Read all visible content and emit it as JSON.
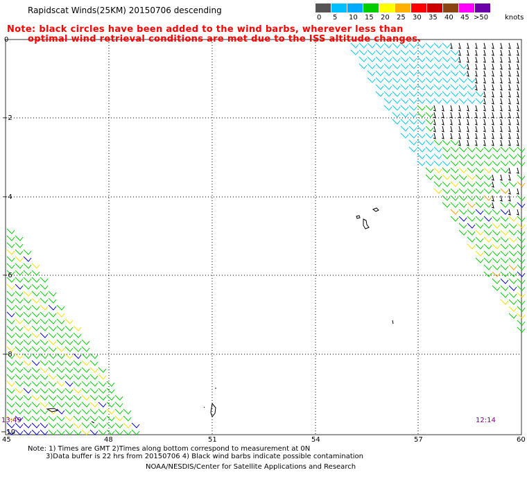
{
  "title": "Rapidscat Winds(25KM) 20150706 descending",
  "note": {
    "line1": "Note: black circles have been added to the wind barbs, wherever less than",
    "line2": "optimal wind retrieval conditions are met due to the ISS altitude changes."
  },
  "legend": {
    "unit": "knots",
    "bins": [
      {
        "label": "0",
        "color": "#555555"
      },
      {
        "label": "5",
        "color": "#00bfff"
      },
      {
        "label": "10",
        "color": "#00aaff"
      },
      {
        "label": "15",
        "color": "#00cc00"
      },
      {
        "label": "20",
        "color": "#ffff00"
      },
      {
        "label": "25",
        "color": "#ffb000"
      },
      {
        "label": "30",
        "color": "#ff0000"
      },
      {
        "label": "35",
        "color": "#cc0000"
      },
      {
        "label": "40",
        "color": "#8b4513"
      },
      {
        "label": "45",
        "color": "#ff00ff"
      },
      {
        "label": ">50",
        "color": "#6a00aa"
      }
    ]
  },
  "axes": {
    "lon_labels": [
      "45",
      "48",
      "51",
      "54",
      "57",
      "60"
    ],
    "lat_labels": [
      "0",
      "−2",
      "−4",
      "−6",
      "−8",
      "−10"
    ],
    "lon_range": [
      45,
      60
    ],
    "lat_range": [
      0,
      -10
    ]
  },
  "times": {
    "left": "13:49",
    "right": "12:14"
  },
  "footer": {
    "line1": "Note: 1) Times are GMT 2)Times along bottom correspond to measurement at 0N",
    "line2": "3)Data buffer is 22 hrs from 20150706 4) Black wind barbs indicate possible contamination",
    "line3": "NOAA/NESDIS/Center for Satellite Applications and Research"
  },
  "barb_colors": {
    "cyan": "#00c8e6",
    "black": "#000000",
    "green": "#00cc00",
    "yellow": "#f0e000",
    "blue": "#0000cc",
    "orange": "#f0a000"
  }
}
